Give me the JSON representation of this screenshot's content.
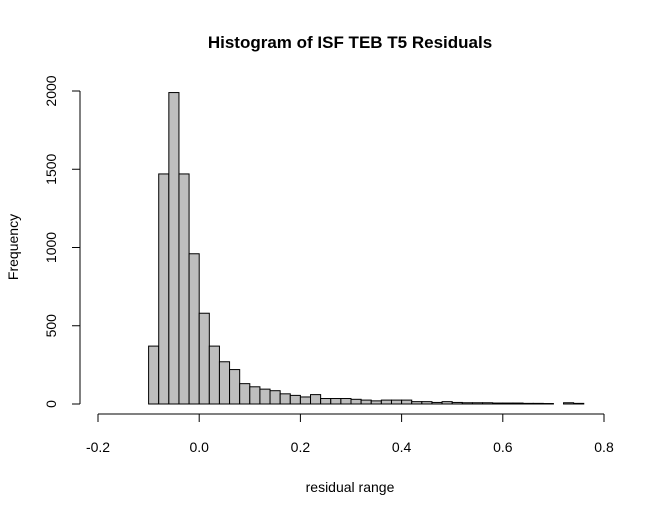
{
  "chart_data": {
    "type": "bar",
    "title": "Histogram of ISF TEB T5 Residuals",
    "xlabel": "residual range",
    "ylabel": "Frequency",
    "bin_width": 0.02,
    "bin_edges": [
      -0.1,
      -0.08,
      -0.06,
      -0.04,
      -0.02,
      0.0,
      0.02,
      0.04,
      0.06,
      0.08,
      0.1,
      0.12,
      0.14,
      0.16,
      0.18,
      0.2,
      0.22,
      0.24,
      0.26,
      0.28,
      0.3,
      0.32,
      0.34,
      0.36,
      0.38,
      0.4,
      0.42,
      0.44,
      0.46,
      0.48,
      0.5,
      0.52,
      0.54,
      0.56,
      0.58,
      0.6,
      0.62,
      0.64,
      0.66,
      0.68,
      0.72,
      0.74,
      0.76
    ],
    "values": [
      370,
      1470,
      1990,
      1470,
      960,
      580,
      370,
      270,
      220,
      130,
      110,
      95,
      85,
      65,
      55,
      45,
      60,
      35,
      35,
      35,
      30,
      25,
      20,
      25,
      25,
      25,
      15,
      15,
      10,
      15,
      10,
      8,
      8,
      8,
      6,
      6,
      6,
      4,
      4,
      3,
      8,
      4
    ],
    "xlim": [
      -0.2,
      0.8
    ],
    "ylim": [
      0,
      2000
    ],
    "xticks": [
      -0.2,
      0.0,
      0.2,
      0.4,
      0.6,
      0.8
    ],
    "xtick_labels": [
      "-0.2",
      "0.0",
      "0.2",
      "0.4",
      "0.6",
      "0.8"
    ],
    "yticks": [
      0,
      500,
      1000,
      1500,
      2000
    ],
    "ytick_labels": [
      "0",
      "500",
      "1000",
      "1500",
      "2000"
    ],
    "bar_color": "#bebebe",
    "edge_color": "#000000",
    "grid": false
  }
}
